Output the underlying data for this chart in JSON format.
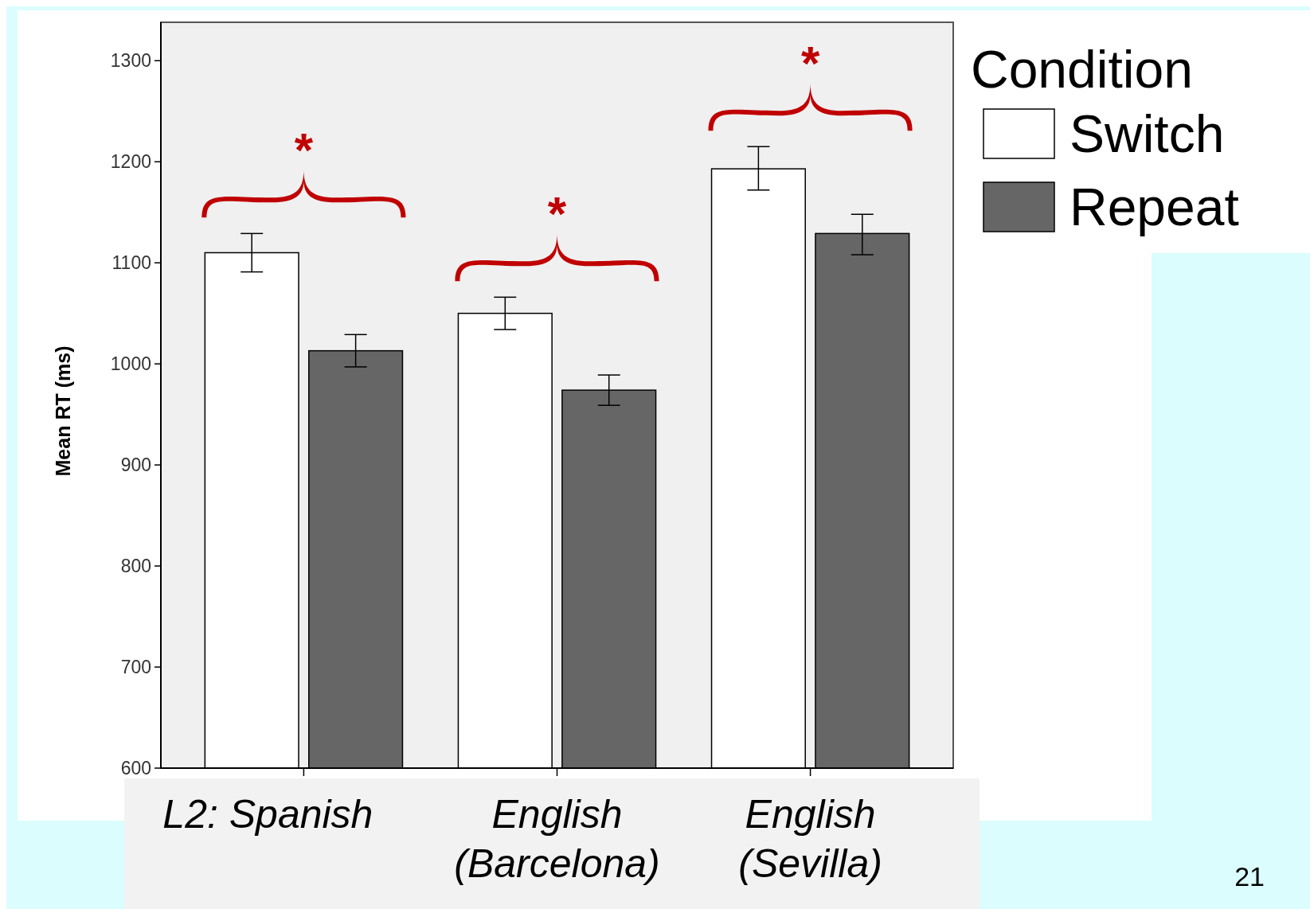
{
  "chart_data": {
    "type": "bar",
    "ylabel": "Mean RT (ms)",
    "legend_title": "Condition",
    "legend": "top right",
    "categories": [
      "L2: Spanish",
      "English\n(Barcelona)",
      "English\n(Sevilla)"
    ],
    "series": [
      {
        "name": "Switch",
        "color": "#ffffff",
        "values": [
          1110,
          1050,
          1193
        ],
        "errors": [
          [
            1091,
            1129
          ],
          [
            1034,
            1066
          ],
          [
            1172,
            1215
          ]
        ]
      },
      {
        "name": "Repeat",
        "color": "#666666",
        "values": [
          1013,
          974,
          1129
        ],
        "errors": [
          [
            997,
            1029
          ],
          [
            959,
            989
          ],
          [
            1108,
            1148
          ]
        ]
      }
    ],
    "ylim": [
      600,
      1338
    ],
    "yticks": [
      600,
      700,
      800,
      900,
      1000,
      1100,
      1200,
      1300
    ],
    "grid": false,
    "annotations": [
      "*",
      "*",
      "*",
      "21"
    ]
  }
}
